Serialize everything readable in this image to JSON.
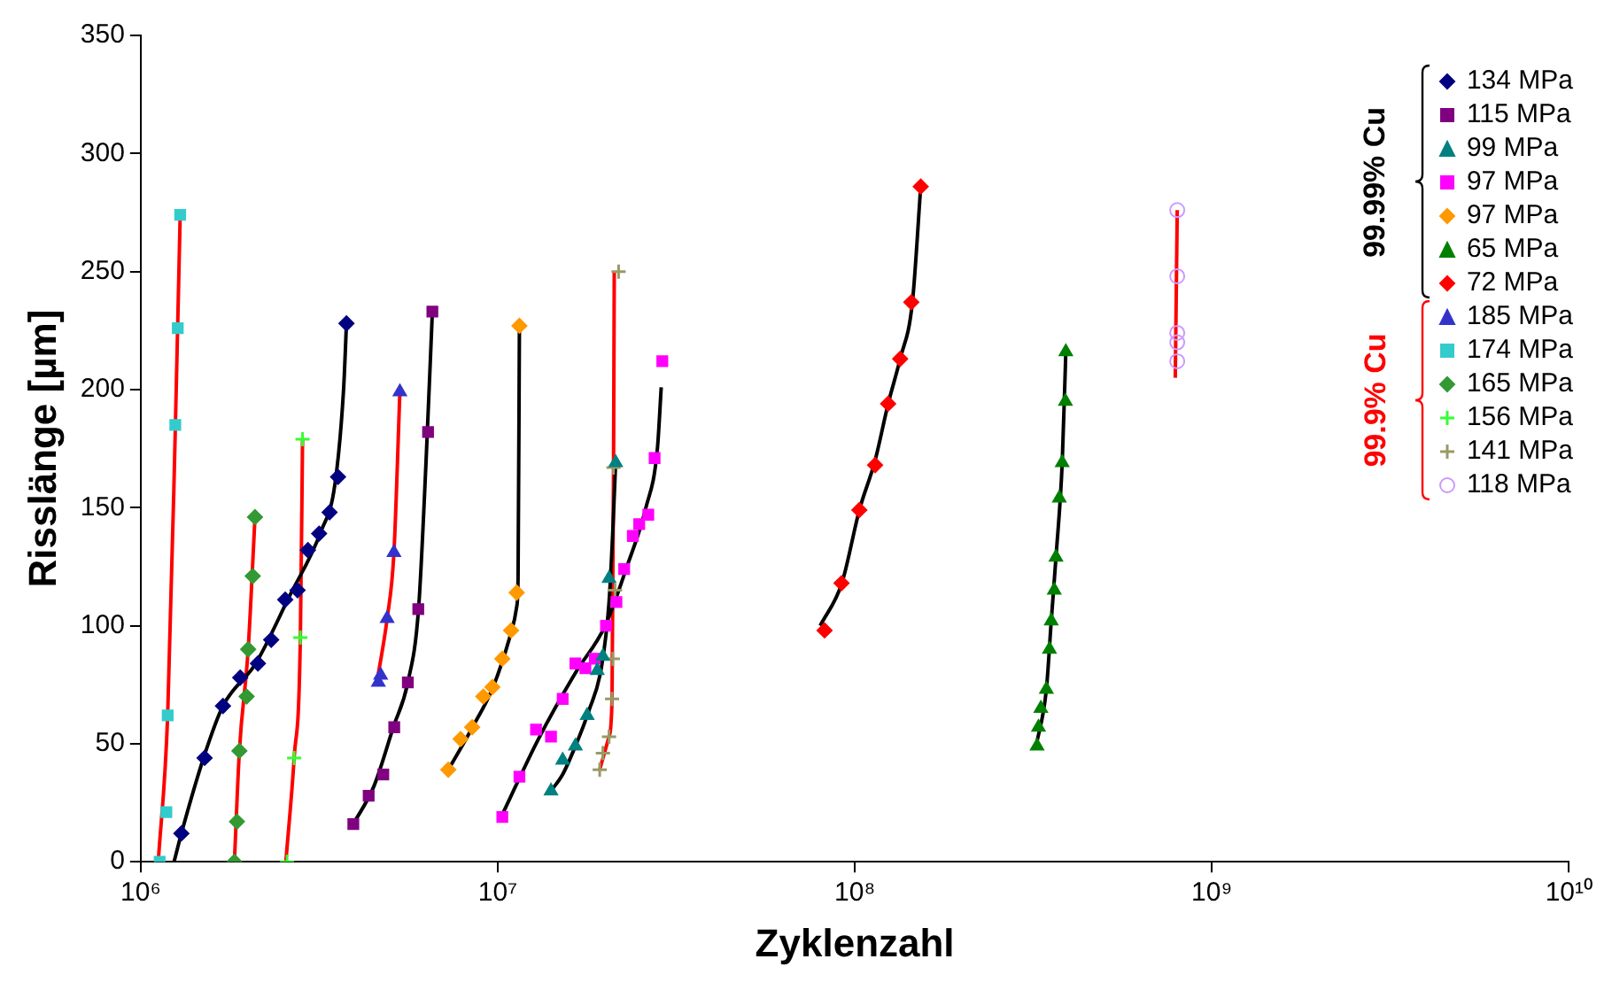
{
  "chart_data": {
    "type": "scatter",
    "xlabel": "Zyklenzahl",
    "ylabel": "Risslänge [µm]",
    "log": "x",
    "xlim": [
      1000000,
      10000000000
    ],
    "xticks": [
      {
        "value": 1000000,
        "label": "10⁶"
      },
      {
        "value": 10000000,
        "label": "10⁷"
      },
      {
        "value": 100000000,
        "label": "10⁸"
      },
      {
        "value": 1000000000,
        "label": "10⁹"
      },
      {
        "value": 10000000000,
        "label": "10¹⁰"
      }
    ],
    "ylim": [
      0,
      350
    ],
    "yticks": [
      0,
      50,
      100,
      150,
      200,
      250,
      300,
      350
    ],
    "grid": false,
    "legend": "top right",
    "annotations": [
      "99.99% Cu",
      "99.9% Cu"
    ],
    "series": [
      {
        "name": "134 MPa",
        "type": "scatter",
        "marker": "diamond",
        "color": "#000080",
        "x": [
          1300000.0,
          1510000.0,
          1700000.0,
          1900000.0,
          2130000.0,
          2320000.0,
          2540000.0,
          2750000.0,
          2940000.0,
          3160000.0,
          3380000.0,
          3570000.0,
          3770000.0
        ],
        "values": [
          12,
          44,
          66,
          78,
          84,
          94,
          111,
          115,
          132,
          139,
          148,
          163,
          228
        ]
      },
      {
        "name": "115 MPa",
        "type": "scatter",
        "marker": "square",
        "color": "#800080",
        "x": [
          3940000.0,
          4350000.0,
          4780000.0,
          5130000.0,
          5600000.0,
          5990000.0,
          6380000.0,
          6560000.0
        ],
        "values": [
          16,
          28,
          37,
          57,
          76,
          107,
          182,
          233
        ]
      },
      {
        "name": "99 MPa",
        "type": "scatter",
        "marker": "triangle",
        "color": "#008080",
        "x": [
          14100000.0,
          15200000.0,
          16500000.0,
          17800000.0,
          19000000.0,
          19700000.0,
          20500000.0,
          21400000.0
        ],
        "values": [
          30,
          43,
          49,
          62,
          81,
          87,
          120,
          169
        ]
      },
      {
        "name": "97 MPa",
        "type": "scatter",
        "marker": "square",
        "color": "#ff00ff",
        "x": [
          10300000.0,
          11500000.0,
          12800000.0,
          14100000.0,
          15200000.0,
          16500000.0,
          17600000.0,
          18700000.0,
          20100000.0,
          21500000.0,
          22600000.0,
          23900000.0,
          24900000.0,
          26400000.0,
          27500000.0,
          28900000.0
        ],
        "values": [
          19,
          36,
          56,
          53,
          69,
          84,
          82,
          86,
          100,
          110,
          124,
          138,
          143,
          147,
          171,
          212
        ]
      },
      {
        "name": "97 MPa",
        "type": "scatter",
        "marker": "diamond",
        "color": "#ff9900",
        "x": [
          7270000.0,
          7870000.0,
          8480000.0,
          9110000.0,
          9660000.0,
          10300000.0,
          10900000.0,
          11300000.0,
          11500000.0
        ],
        "values": [
          39,
          52,
          57,
          70,
          74,
          86,
          98,
          114,
          227
        ]
      },
      {
        "name": "65 MPa",
        "type": "scatter",
        "marker": "triangle",
        "color": "#008000",
        "x": [
          324000000.0,
          327000000.0,
          332000000.0,
          344000000.0,
          351000000.0,
          355000000.0,
          362000000.0,
          366000000.0,
          374000000.0,
          381000000.0,
          389000000.0,
          390000000.0
        ],
        "values": [
          49,
          57,
          65,
          73,
          90,
          102,
          115,
          129,
          154,
          169,
          195,
          216
        ]
      },
      {
        "name": "72 MPa",
        "type": "scatter",
        "marker": "diamond",
        "color": "#ff0000",
        "x": [
          82300000.0,
          91800000.0,
          103000000.0,
          114000000.0,
          124000000.0,
          134000000.0,
          144000000.0,
          153000000.0
        ],
        "values": [
          98,
          118,
          149,
          168,
          194,
          213,
          237,
          286
        ]
      },
      {
        "name": "185 MPa",
        "type": "scatter",
        "marker": "triangle",
        "color": "#3333cc",
        "x": [
          4630000.0,
          4700000.0,
          4900000.0,
          5120000.0,
          5320000.0
        ],
        "values": [
          76,
          79,
          103,
          131,
          199
        ]
      },
      {
        "name": "174 MPa",
        "type": "scatter",
        "marker": "square",
        "color": "#33cccc",
        "x": [
          1130000.0,
          1180000.0,
          1190000.0,
          1250000.0,
          1270000.0,
          1290000.0
        ],
        "values": [
          0,
          21,
          62,
          185,
          226,
          274
        ]
      },
      {
        "name": "165 MPa",
        "type": "scatter",
        "marker": "diamond",
        "color": "#339933",
        "x": [
          1830000.0,
          1860000.0,
          1890000.0,
          1980000.0,
          2000000.0,
          2060000.0,
          2090000.0
        ],
        "values": [
          0,
          17,
          47,
          70,
          90,
          121,
          146
        ]
      },
      {
        "name": "156 MPa",
        "type": "scatter",
        "marker": "cross",
        "color": "#33ff33",
        "x": [
          2570000.0,
          2690000.0,
          2800000.0,
          2840000.0
        ],
        "values": [
          0,
          44,
          95,
          179
        ]
      },
      {
        "name": "141 MPa",
        "type": "scatter",
        "marker": "cross",
        "color": "#999966",
        "x": [
          19300000.0,
          19700000.0,
          20500000.0,
          20900000.0,
          21000000.0,
          21300000.0,
          21100000.0,
          21800000.0
        ],
        "values": [
          39,
          46,
          53,
          69,
          86,
          115,
          167,
          250
        ]
      },
      {
        "name": "118 MPa",
        "type": "scatter",
        "marker": "circle",
        "color": "#cc99ff",
        "x": [
          800000000.0,
          800000000.0,
          800000000.0,
          800000000.0,
          800000000.0
        ],
        "values": [
          212,
          220,
          224,
          248,
          276
        ]
      },
      {
        "type": "line",
        "marker": "none",
        "color": "#000000",
        "x": [
          1240000.0,
          1300000.0,
          1500000.0,
          1700000.0,
          2100000.0,
          2600000.0,
          3200000.0,
          3500000.0,
          3700000.0,
          3770000.0
        ],
        "values": [
          0,
          12,
          44,
          66,
          84,
          112,
          140,
          160,
          200,
          228
        ]
      },
      {
        "type": "line",
        "marker": "none",
        "color": "#000000",
        "x": [
          3940000.0,
          4500000.0,
          5100000.0,
          5600000.0,
          6000000.0,
          6300000.0,
          6560000.0
        ],
        "values": [
          16,
          32,
          57,
          76,
          107,
          170,
          233
        ]
      },
      {
        "type": "line",
        "marker": "none",
        "color": "#000000",
        "x": [
          7270000.0,
          8500000.0,
          9700000.0,
          10800000.0,
          11300000.0,
          11400000.0,
          11500000.0
        ],
        "values": [
          39,
          57,
          74,
          95,
          108,
          120,
          227
        ]
      },
      {
        "type": "line",
        "marker": "none",
        "color": "#000000",
        "x": [
          10300000.0,
          13000000.0,
          16500000.0,
          20000000.0,
          23000000.0,
          26000000.0,
          28000000.0,
          28700000.0
        ],
        "values": [
          20,
          52,
          80,
          100,
          125,
          150,
          175,
          201
        ]
      },
      {
        "type": "line",
        "marker": "none",
        "color": "#000000",
        "x": [
          14100000.0,
          15200000.0,
          16500000.0,
          18000000.0,
          19500000.0,
          20500000.0,
          21000000.0,
          21400000.0
        ],
        "values": [
          30,
          37,
          49,
          64,
          82,
          110,
          140,
          170
        ]
      },
      {
        "type": "line",
        "marker": "none",
        "color": "#000000",
        "x": [
          80000000.0,
          92000000.0,
          103000000.0,
          114000000.0,
          124000000.0,
          134000000.0,
          145000000.0,
          153000000.0
        ],
        "values": [
          100,
          118,
          149,
          170,
          194,
          213,
          237,
          286
        ]
      },
      {
        "type": "line",
        "marker": "none",
        "color": "#000000",
        "x": [
          322000000.0,
          344000000.0,
          355000000.0,
          366000000.0,
          381000000.0,
          390000000.0
        ],
        "values": [
          49,
          73,
          102,
          129,
          169,
          216
        ]
      },
      {
        "type": "line",
        "marker": "none",
        "color": "#ff0000",
        "x": [
          4600000.0,
          4900000.0,
          5120000.0,
          5320000.0
        ],
        "values": [
          77,
          103,
          131,
          199
        ]
      },
      {
        "type": "line",
        "marker": "none",
        "color": "#ff0000",
        "x": [
          1120000.0,
          1190000.0,
          1250000.0,
          1290000.0
        ],
        "values": [
          0,
          62,
          183,
          274
        ]
      },
      {
        "type": "line",
        "marker": "none",
        "color": "#ff0000",
        "x": [
          1830000.0,
          1890000.0,
          2000000.0,
          2090000.0
        ],
        "values": [
          0,
          47,
          90,
          146
        ]
      },
      {
        "type": "line",
        "marker": "none",
        "color": "#ff0000",
        "x": [
          2550000.0,
          2690000.0,
          2800000.0,
          2840000.0
        ],
        "values": [
          0,
          44,
          95,
          179
        ]
      },
      {
        "type": "line",
        "marker": "none",
        "color": "#ff0000",
        "x": [
          19300000.0,
          20500000.0,
          20900000.0,
          21100000.0,
          21200000.0
        ],
        "values": [
          39,
          53,
          69,
          167,
          250
        ]
      },
      {
        "type": "line",
        "marker": "none",
        "color": "#ff0000",
        "x": [
          790000000.0,
          800000000.0
        ],
        "values": [
          205,
          276
        ]
      }
    ]
  }
}
